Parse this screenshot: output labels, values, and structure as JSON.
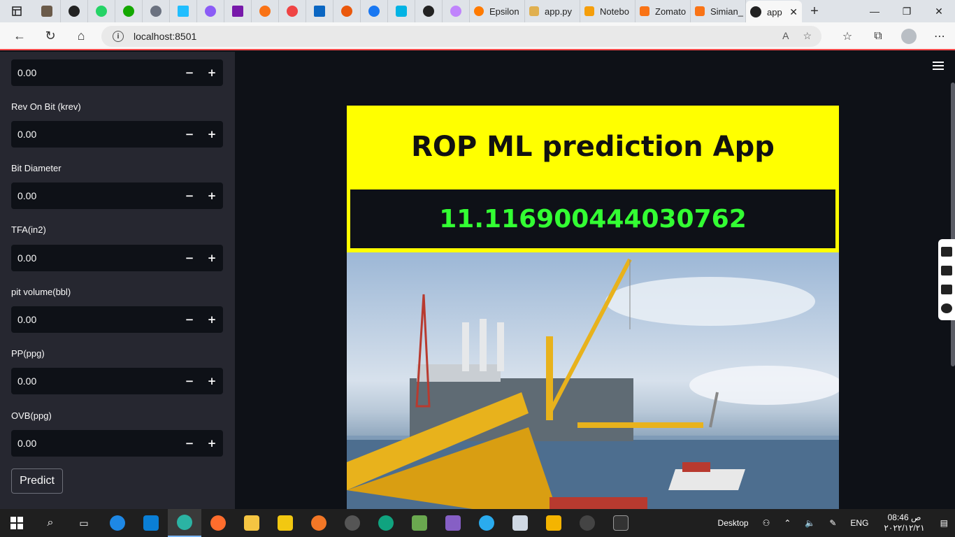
{
  "browser": {
    "tabs": [
      {
        "label": "Epsilon",
        "color": "#ff7a00"
      },
      {
        "label": "app.py",
        "color": "#e0b050"
      },
      {
        "label": "Notebo",
        "color": "#f59e0b"
      },
      {
        "label": "Zomato",
        "color": "#f97316"
      },
      {
        "label": "Simian_",
        "color": "#f97316"
      }
    ],
    "active_tab": "app",
    "url": "localhost:8501",
    "new_tab_symbol": "+",
    "close_symbol": "✕"
  },
  "sidebar": {
    "fields": [
      {
        "label": "",
        "value": "0.00"
      },
      {
        "label": "Rev On Bit (krev)",
        "value": "0.00"
      },
      {
        "label": "Bit Diameter",
        "value": "0.00"
      },
      {
        "label": "TFA(in2)",
        "value": "0.00"
      },
      {
        "label": "pit volume(bbl)",
        "value": "0.00"
      },
      {
        "label": "PP(ppg)",
        "value": "0.00"
      },
      {
        "label": "OVB(ppg)",
        "value": "0.00"
      }
    ],
    "minus": "−",
    "plus": "+",
    "predict_label": "Predict"
  },
  "main": {
    "title": "ROP ML prediction App",
    "prediction": "11.116900444030762",
    "title_bg": "#ffff00",
    "prediction_color": "#33ff33",
    "image_alt": "offshore oil rig platform"
  },
  "taskbar": {
    "desktop_label": "Desktop",
    "language": "ENG",
    "time": "08:46 ص",
    "date": "٢٠٢٢/١٢/٢١"
  },
  "colors": {
    "sidebar_bg": "#262730",
    "app_bg": "#0e1117",
    "accent": "#ff4b4b"
  }
}
